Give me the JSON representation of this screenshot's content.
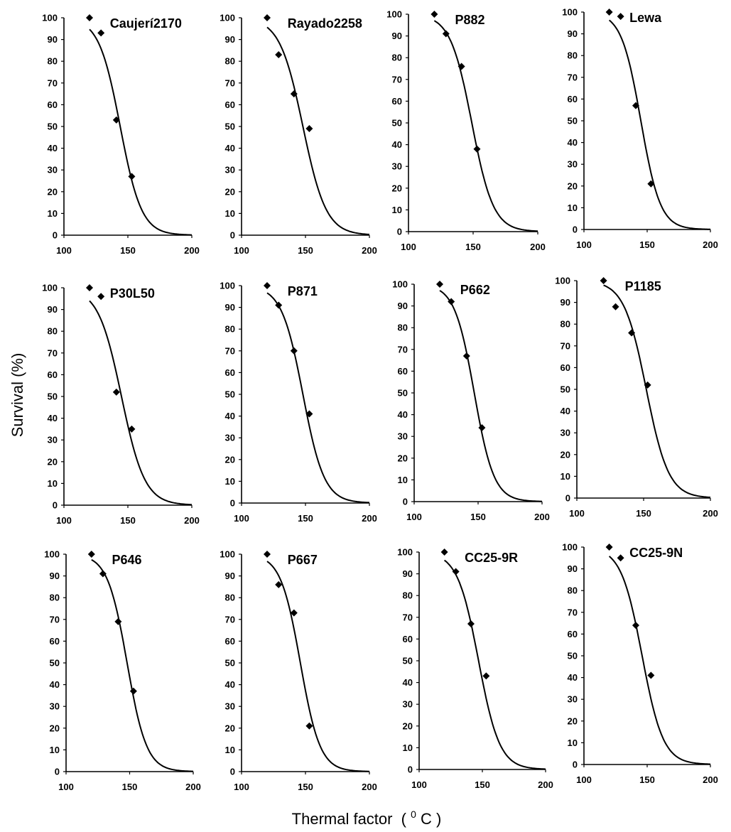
{
  "figure": {
    "ylabel": "Survival (%)",
    "xlabel": "Thermal factor",
    "xlabel_unit_sup": "0",
    "xlabel_unit": "C"
  },
  "chart_data": [
    {
      "type": "scatter",
      "title": "Caujerí2170",
      "xlim": [
        100,
        200
      ],
      "ylim": [
        0,
        100
      ],
      "xticks": [
        100,
        150,
        200
      ],
      "yticks": [
        0,
        10,
        20,
        30,
        40,
        50,
        60,
        70,
        80,
        90,
        100
      ],
      "points": [
        {
          "x": 120,
          "y": 100
        },
        {
          "x": 129,
          "y": 93
        },
        {
          "x": 141,
          "y": 53
        },
        {
          "x": 153,
          "y": 27
        }
      ],
      "fit": {
        "midpoint": 144,
        "slope": 0.12
      }
    },
    {
      "type": "scatter",
      "title": "Rayado2258",
      "xlim": [
        100,
        200
      ],
      "ylim": [
        0,
        100
      ],
      "xticks": [
        100,
        150,
        200
      ],
      "yticks": [
        0,
        10,
        20,
        30,
        40,
        50,
        60,
        70,
        80,
        90,
        100
      ],
      "points": [
        {
          "x": 120,
          "y": 100
        },
        {
          "x": 129,
          "y": 83
        },
        {
          "x": 141,
          "y": 65
        },
        {
          "x": 153,
          "y": 49
        }
      ],
      "fit": {
        "midpoint": 148,
        "slope": 0.11
      }
    },
    {
      "type": "scatter",
      "title": "P882",
      "xlim": [
        100,
        200
      ],
      "ylim": [
        0,
        100
      ],
      "xticks": [
        100,
        150,
        200
      ],
      "yticks": [
        0,
        10,
        20,
        30,
        40,
        50,
        60,
        70,
        80,
        90,
        100
      ],
      "points": [
        {
          "x": 120,
          "y": 100
        },
        {
          "x": 129,
          "y": 91
        },
        {
          "x": 141,
          "y": 76
        },
        {
          "x": 153,
          "y": 38
        }
      ],
      "fit": {
        "midpoint": 149,
        "slope": 0.12
      }
    },
    {
      "type": "scatter",
      "title": "Lewa",
      "xlim": [
        100,
        200
      ],
      "ylim": [
        0,
        100
      ],
      "xticks": [
        100,
        150,
        200
      ],
      "yticks": [
        0,
        10,
        20,
        30,
        40,
        50,
        60,
        70,
        80,
        90,
        100
      ],
      "points": [
        {
          "x": 120,
          "y": 100
        },
        {
          "x": 129,
          "y": 98
        },
        {
          "x": 141,
          "y": 57
        },
        {
          "x": 153,
          "y": 21
        }
      ],
      "fit": {
        "midpoint": 145,
        "slope": 0.13
      }
    },
    {
      "type": "scatter",
      "title": "P30L50",
      "xlim": [
        100,
        200
      ],
      "ylim": [
        0,
        100
      ],
      "xticks": [
        100,
        150,
        200
      ],
      "yticks": [
        0,
        10,
        20,
        30,
        40,
        50,
        60,
        70,
        80,
        90,
        100
      ],
      "points": [
        {
          "x": 120,
          "y": 100
        },
        {
          "x": 129,
          "y": 96
        },
        {
          "x": 141,
          "y": 52
        },
        {
          "x": 153,
          "y": 35
        }
      ],
      "fit": {
        "midpoint": 145,
        "slope": 0.11
      }
    },
    {
      "type": "scatter",
      "title": "P871",
      "xlim": [
        100,
        200
      ],
      "ylim": [
        0,
        100
      ],
      "xticks": [
        100,
        150,
        200
      ],
      "yticks": [
        0,
        10,
        20,
        30,
        40,
        50,
        60,
        70,
        80,
        90,
        100
      ],
      "points": [
        {
          "x": 120,
          "y": 100
        },
        {
          "x": 129,
          "y": 91
        },
        {
          "x": 141,
          "y": 70
        },
        {
          "x": 153,
          "y": 41
        }
      ],
      "fit": {
        "midpoint": 148,
        "slope": 0.12
      }
    },
    {
      "type": "scatter",
      "title": "P662",
      "xlim": [
        100,
        200
      ],
      "ylim": [
        0,
        100
      ],
      "xticks": [
        100,
        150,
        200
      ],
      "yticks": [
        0,
        10,
        20,
        30,
        40,
        50,
        60,
        70,
        80,
        90,
        100
      ],
      "points": [
        {
          "x": 120,
          "y": 100
        },
        {
          "x": 129,
          "y": 92
        },
        {
          "x": 141,
          "y": 67
        },
        {
          "x": 153,
          "y": 34
        }
      ],
      "fit": {
        "midpoint": 147,
        "slope": 0.13
      }
    },
    {
      "type": "scatter",
      "title": "P1185",
      "xlim": [
        100,
        200
      ],
      "ylim": [
        0,
        100
      ],
      "xticks": [
        100,
        150,
        200
      ],
      "yticks": [
        0,
        10,
        20,
        30,
        40,
        50,
        60,
        70,
        80,
        90,
        100
      ],
      "points": [
        {
          "x": 120,
          "y": 100
        },
        {
          "x": 129,
          "y": 88
        },
        {
          "x": 141,
          "y": 76
        },
        {
          "x": 153,
          "y": 52
        }
      ],
      "fit": {
        "midpoint": 152,
        "slope": 0.12
      }
    },
    {
      "type": "scatter",
      "title": "P646",
      "xlim": [
        100,
        200
      ],
      "ylim": [
        0,
        100
      ],
      "xticks": [
        100,
        150,
        200
      ],
      "yticks": [
        0,
        10,
        20,
        30,
        40,
        50,
        60,
        70,
        80,
        90,
        100
      ],
      "points": [
        {
          "x": 120,
          "y": 100
        },
        {
          "x": 129,
          "y": 91
        },
        {
          "x": 141,
          "y": 69
        },
        {
          "x": 153,
          "y": 37
        }
      ],
      "fit": {
        "midpoint": 148,
        "slope": 0.13
      }
    },
    {
      "type": "scatter",
      "title": "P667",
      "xlim": [
        100,
        200
      ],
      "ylim": [
        0,
        100
      ],
      "xticks": [
        100,
        150,
        200
      ],
      "yticks": [
        0,
        10,
        20,
        30,
        40,
        50,
        60,
        70,
        80,
        90,
        100
      ],
      "points": [
        {
          "x": 120,
          "y": 100
        },
        {
          "x": 129,
          "y": 86
        },
        {
          "x": 141,
          "y": 73
        },
        {
          "x": 153,
          "y": 21
        }
      ],
      "fit": {
        "midpoint": 146,
        "slope": 0.13
      }
    },
    {
      "type": "scatter",
      "title": "CC25-9R",
      "xlim": [
        100,
        200
      ],
      "ylim": [
        0,
        100
      ],
      "xticks": [
        100,
        150,
        200
      ],
      "yticks": [
        0,
        10,
        20,
        30,
        40,
        50,
        60,
        70,
        80,
        90,
        100
      ],
      "points": [
        {
          "x": 120,
          "y": 100
        },
        {
          "x": 129,
          "y": 91
        },
        {
          "x": 141,
          "y": 67
        },
        {
          "x": 153,
          "y": 43
        }
      ],
      "fit": {
        "midpoint": 147,
        "slope": 0.12
      }
    },
    {
      "type": "scatter",
      "title": "CC25-9N",
      "xlim": [
        100,
        200
      ],
      "ylim": [
        0,
        100
      ],
      "xticks": [
        100,
        150,
        200
      ],
      "yticks": [
        0,
        10,
        20,
        30,
        40,
        50,
        60,
        70,
        80,
        90,
        100
      ],
      "points": [
        {
          "x": 120,
          "y": 100
        },
        {
          "x": 129,
          "y": 95
        },
        {
          "x": 141,
          "y": 64
        },
        {
          "x": 153,
          "y": 41
        }
      ],
      "fit": {
        "midpoint": 146,
        "slope": 0.12
      }
    }
  ]
}
